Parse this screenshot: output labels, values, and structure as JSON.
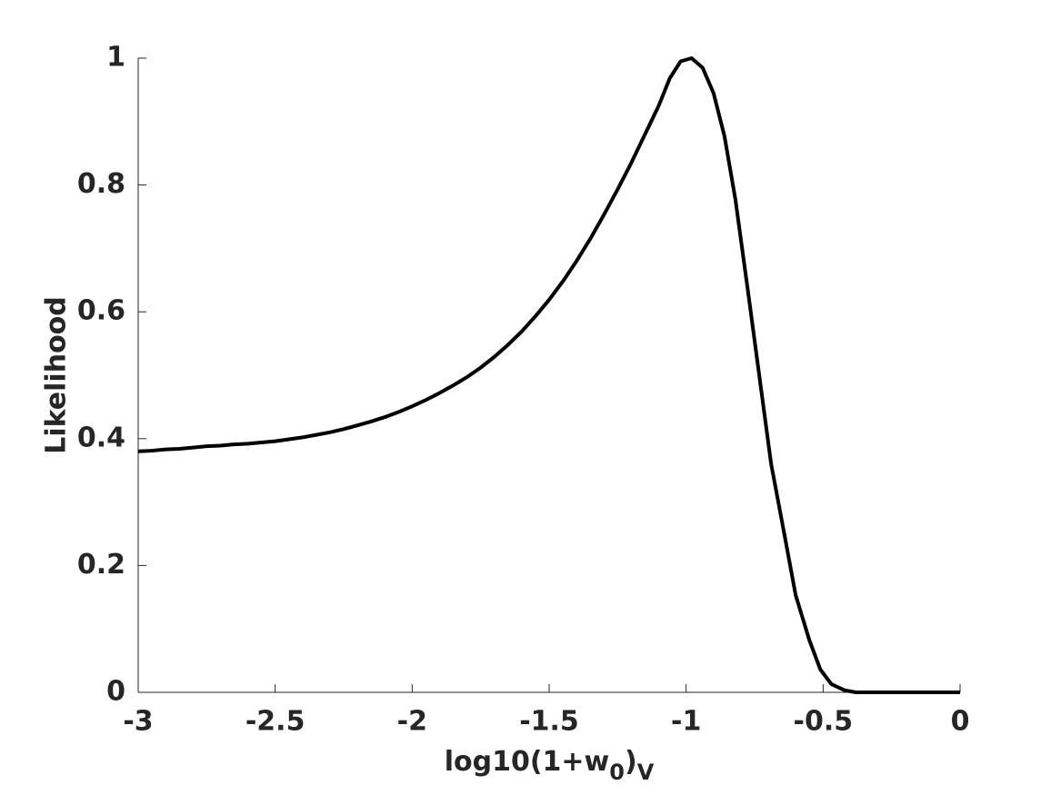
{
  "chart_data": {
    "type": "line",
    "x_label_parts": [
      "log10(1+w",
      "0",
      ")",
      "V"
    ],
    "y_label": "Likelihood",
    "color": "#000000",
    "x": [
      -3,
      -2.95,
      -2.9,
      -2.85,
      -2.8,
      -2.75,
      -2.7,
      -2.65,
      -2.6,
      -2.55,
      -2.5,
      -2.45,
      -2.4,
      -2.35,
      -2.3,
      -2.25,
      -2.2,
      -2.15,
      -2.1,
      -2.05,
      -2,
      -1.95,
      -1.9,
      -1.85,
      -1.8,
      -1.75,
      -1.7,
      -1.65,
      -1.6,
      -1.55,
      -1.5,
      -1.45,
      -1.4,
      -1.35,
      -1.3,
      -1.25,
      -1.2,
      -1.15,
      -1.1,
      -1.06,
      -1.02,
      -0.98,
      -0.94,
      -0.9,
      -0.86,
      -0.82,
      -0.77,
      -0.73,
      -0.69,
      -0.64,
      -0.6,
      -0.55,
      -0.51,
      -0.47,
      -0.42,
      -0.38,
      -0.3,
      -0.2,
      -0.1,
      0
    ],
    "values": [
      0.38,
      0.381,
      0.383,
      0.384,
      0.386,
      0.388,
      0.389,
      0.391,
      0.392,
      0.394,
      0.396,
      0.399,
      0.402,
      0.406,
      0.41,
      0.415,
      0.421,
      0.427,
      0.434,
      0.442,
      0.451,
      0.461,
      0.472,
      0.484,
      0.497,
      0.512,
      0.529,
      0.548,
      0.569,
      0.593,
      0.619,
      0.648,
      0.68,
      0.715,
      0.753,
      0.793,
      0.835,
      0.88,
      0.925,
      0.968,
      0.995,
      1.0,
      0.985,
      0.945,
      0.877,
      0.777,
      0.619,
      0.49,
      0.361,
      0.246,
      0.153,
      0.082,
      0.036,
      0.013,
      0.003,
      0.0,
      0,
      0,
      0,
      0
    ],
    "xlim": [
      -3,
      0
    ],
    "xticks": [
      -3,
      -2.5,
      -2,
      -1.5,
      -1,
      -0.5,
      0
    ],
    "ylim": [
      0,
      1
    ],
    "yticks": [
      0,
      0.2,
      0.4,
      0.6,
      0.8,
      1
    ]
  }
}
